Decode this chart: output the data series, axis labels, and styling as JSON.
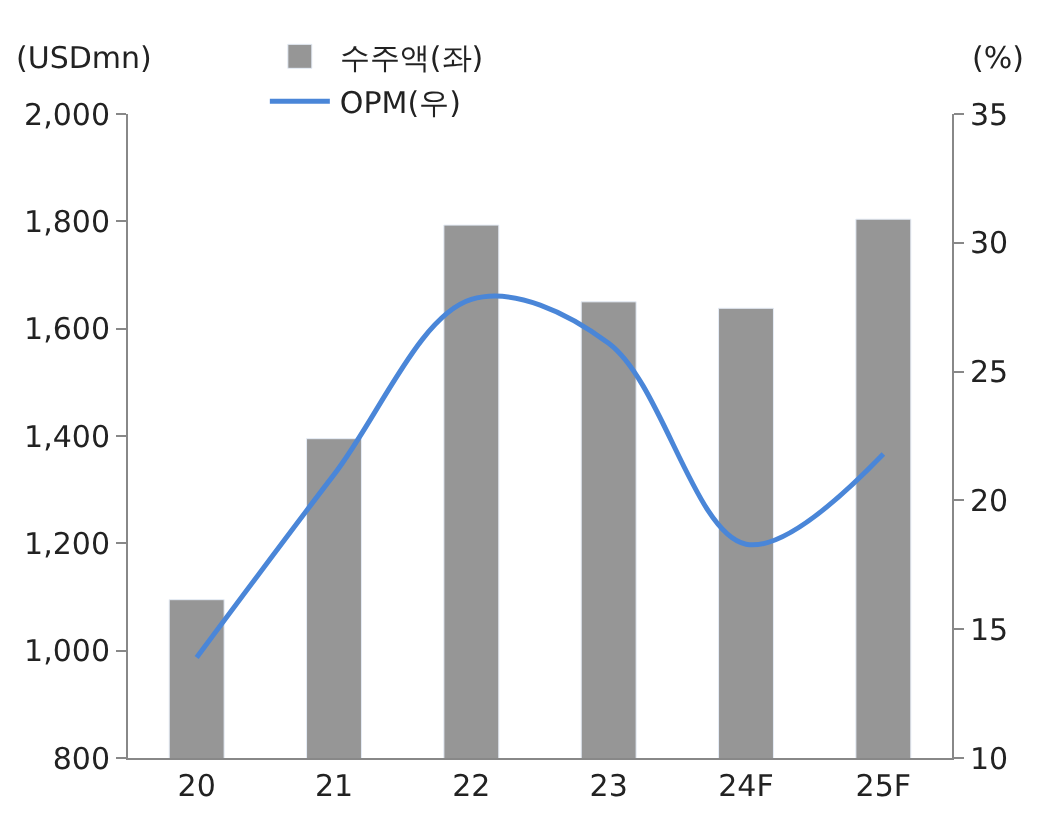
{
  "chart_data": {
    "type": "bar",
    "ylabel": "(USDmn)",
    "y2label": "(%)",
    "categories": [
      "20",
      "21",
      "22",
      "23",
      "24F",
      "25F"
    ],
    "series": [
      {
        "name": "수주액(좌)",
        "color": "#969696",
        "values": [
          1095,
          1395,
          1793,
          1650,
          1638,
          1804
        ]
      },
      {
        "name": "OPM(우)",
        "type": "line",
        "axis": "y2",
        "color": "#4a86d8",
        "values": [
          13.9,
          21.0,
          27.8,
          26.1,
          18.3,
          21.8
        ]
      }
    ],
    "ylim": [
      800,
      2000
    ],
    "yticks": [
      {
        "value": 800,
        "label": "800"
      },
      {
        "value": 1000,
        "label": "1,000"
      },
      {
        "value": 1200,
        "label": "1,200"
      },
      {
        "value": 1400,
        "label": "1,400"
      },
      {
        "value": 1600,
        "label": "1,600"
      },
      {
        "value": 1800,
        "label": "1,800"
      },
      {
        "value": 2000,
        "label": "2,000"
      }
    ],
    "y2lim": [
      10,
      35
    ],
    "y2ticks": [
      10,
      15,
      20,
      25,
      30,
      35
    ],
    "legend": "top",
    "marker": "none",
    "line_style": "solid"
  }
}
